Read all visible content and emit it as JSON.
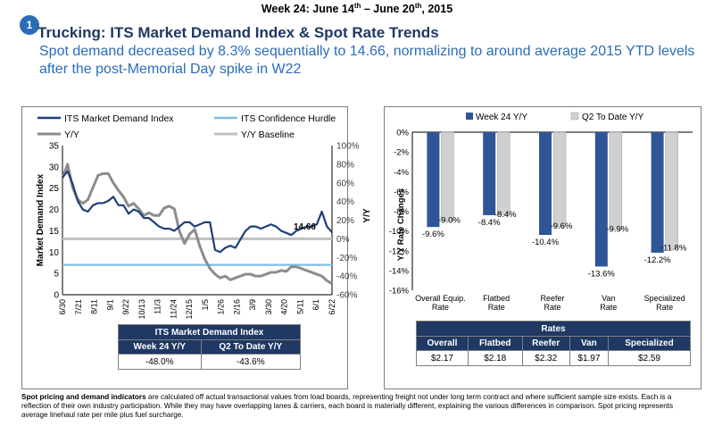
{
  "header": {
    "week_prefix": "Week 24: June 14",
    "week_sup1": "th",
    "week_mid": " – June 20",
    "week_sup2": "th",
    "week_suffix": ", 2015",
    "badge": "1",
    "title": "Trucking: ITS Market Demand Index & Spot Rate Trends",
    "subtitle": "Spot demand decreased by 8.3% sequentially to 14.66, normalizing to  around average 2015 YTD levels after the post-Memorial Day spike in W22"
  },
  "chart_data": [
    {
      "type": "line",
      "legend": [
        "ITS Market Demand Index",
        "ITS Confidence Hurdle",
        "Y/Y",
        "Y/Y Baseline"
      ],
      "ylabel": "Market Demand Index",
      "y2label": "Y/Y",
      "ylim": [
        0,
        35
      ],
      "y2lim": [
        -0.6,
        1.0
      ],
      "yticks": [
        "0",
        "5",
        "10",
        "15",
        "20",
        "25",
        "30",
        "35"
      ],
      "y2ticks": [
        "-60%",
        "-40%",
        "-20%",
        "0%",
        "20%",
        "40%",
        "60%",
        "80%",
        "100%"
      ],
      "x_ticks": [
        "6/30",
        "7/21",
        "8/11",
        "9/1",
        "9/22",
        "10/13",
        "11/3",
        "11/24",
        "12/15",
        "1/5",
        "1/26",
        "2/16",
        "3/9",
        "3/30",
        "4/20",
        "5/11",
        "6/1",
        "6/22"
      ],
      "confidence_hurdle": 7,
      "yy_baseline": 0,
      "annotation": "14.66",
      "series": [
        {
          "name": "ITS Market Demand Index",
          "axis": "left",
          "color": "#1f3f7a",
          "values": [
            27.5,
            29,
            26,
            22,
            20,
            19.5,
            21,
            21.5,
            21.5,
            22,
            23,
            21,
            21,
            19,
            20,
            19.5,
            18,
            18,
            17,
            16,
            15.5,
            15.5,
            15,
            16,
            17,
            17,
            16,
            16.5,
            17,
            17,
            10.5,
            10,
            11,
            11.5,
            11,
            13,
            15,
            16,
            16,
            15.5,
            16,
            16.5,
            16,
            15,
            14.5,
            14,
            15,
            15.5,
            16,
            16,
            16.5,
            19.5,
            16,
            14.66
          ]
        },
        {
          "name": "Y/Y",
          "axis": "right",
          "color": "#8c8c8c",
          "values": [
            0.65,
            0.8,
            0.55,
            0.42,
            0.38,
            0.42,
            0.55,
            0.68,
            0.7,
            0.7,
            0.6,
            0.52,
            0.45,
            0.35,
            0.38,
            0.32,
            0.25,
            0.28,
            0.25,
            0.25,
            0.33,
            0.35,
            0.32,
            0.08,
            -0.05,
            0.05,
            0.1,
            -0.08,
            -0.22,
            -0.32,
            -0.38,
            -0.42,
            -0.4,
            -0.44,
            -0.42,
            -0.4,
            -0.38,
            -0.38,
            -0.4,
            -0.4,
            -0.38,
            -0.36,
            -0.36,
            -0.34,
            -0.35,
            -0.3,
            -0.3,
            -0.32,
            -0.34,
            -0.36,
            -0.38,
            -0.4,
            -0.45,
            -0.48
          ]
        }
      ]
    },
    {
      "type": "bar",
      "categories": [
        "Overall Equip. Rate",
        "Flatbed Rate",
        "Reefer Rate",
        "Van Rate",
        "Specialized Rate"
      ],
      "ylabel": "Y/Y Rate Changes",
      "ylim": [
        -16,
        0
      ],
      "yticks": [
        "0%",
        "-2%",
        "-4%",
        "-6%",
        "-8%",
        "-10%",
        "-12%",
        "-14%",
        "-16%"
      ],
      "series": [
        {
          "name": "Week 24 Y/Y",
          "color": "#2e5596",
          "values": [
            -9.6,
            -8.4,
            -10.4,
            -13.6,
            -12.2
          ]
        },
        {
          "name": "Q2 To Date Y/Y",
          "color": "#d0d0d0",
          "values": [
            -9.0,
            -8.4,
            -9.6,
            -9.9,
            -11.8
          ]
        }
      ],
      "labels": [
        {
          "w": "-9.6%",
          "q": "-9.0%"
        },
        {
          "w": "-8.4%",
          "q": "-8.4%"
        },
        {
          "w": "-10.4%",
          "q": "-9.6%"
        },
        {
          "w": "-13.6%",
          "q": "-9.9%"
        },
        {
          "w": "-12.2%",
          "q": "-11.8%"
        }
      ]
    }
  ],
  "index_table": {
    "title": "ITS Market Demand Index",
    "headers": [
      "Week 24 Y/Y",
      "Q2 To Date Y/Y"
    ],
    "values": [
      "-48.0%",
      "-43.6%"
    ]
  },
  "rates_table": {
    "title": "Rates",
    "headers": [
      "Overall",
      "Flatbed",
      "Reefer",
      "Van",
      "Specialized"
    ],
    "values": [
      "$2.17",
      "$2.18",
      "$2.32",
      "$1.97",
      "$2.59"
    ]
  },
  "footnote": {
    "bold": "Spot pricing and demand indicators",
    "text": " are calculated off actual transactional  values from load boards, representing freight not under long term contract and where sufficient sample size exists. Each is a reflection of their own industry participation. While they may have overlapping lanes & carriers, each board is materially different, explaining the various differences in comparison. Spot pricing represents average linehaul rate per mile plus fuel surcharge."
  }
}
